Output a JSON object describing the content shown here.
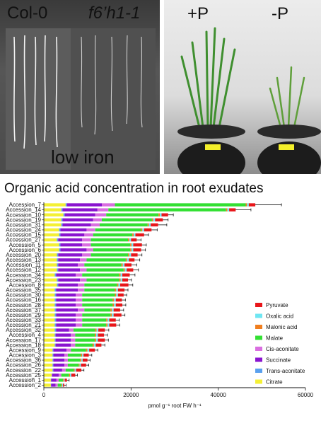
{
  "photos": {
    "left": {
      "label_left": "Col-0",
      "label_right": "f6’h1-1",
      "caption": "low iron"
    },
    "right": {
      "label_left": "+P",
      "label_right": "-P"
    }
  },
  "chart_data": {
    "type": "bar",
    "orientation": "horizontal",
    "stacked": true,
    "title": "Organic acid concentration in root exudates",
    "xlabel": "pmol g⁻¹ root FW h⁻¹",
    "ylabel": "",
    "xlim": [
      0,
      60000
    ],
    "xticks": [
      0,
      20000,
      40000,
      60000
    ],
    "grid": false,
    "legend_position": "right",
    "stack_order": [
      "Citrate",
      "Trans-aconitate",
      "Succinate",
      "Cis-aconitate",
      "Malate",
      "Malonic acid",
      "Oxalic acid",
      "Pyruvate"
    ],
    "legend_order": [
      "Pyruvate",
      "Oxalic acid",
      "Malonic acid",
      "Malate",
      "Cis-aconitate",
      "Succinate",
      "Trans-aconitate",
      "Citrate"
    ],
    "colors": {
      "Pyruvate": "#e8161a",
      "Oxalic acid": "#6fe6f2",
      "Malonic acid": "#f07e1e",
      "Malate": "#33e033",
      "Cis-aconitate": "#d96ee0",
      "Succinate": "#8a14cf",
      "Trans-aconitate": "#5aa0ee",
      "Citrate": "#f4f035"
    },
    "categories": [
      "Accession_7",
      "Accession_14",
      "Accession_10",
      "Accession_19",
      "Accession_31",
      "Accession_24",
      "Accession_15",
      "Accession_27",
      "Accession_5",
      "Accession_6",
      "Accession_20",
      "Accession_13",
      "Accession_11",
      "Accession_12",
      "Accession_34",
      "Accession_23",
      "Accession_8",
      "Accession_35",
      "Accession_30",
      "Accession_16",
      "Accession_28",
      "Accession_37",
      "Accession_29",
      "Accession_33",
      "Accession_21",
      "Accession_32",
      "Accession_4",
      "Accession_17",
      "Accession_18",
      "Accession_9",
      "Accession_3",
      "Accession_36",
      "Accession_26",
      "Accession_22",
      "Accession_25",
      "Accession_1",
      "Accession_2"
    ],
    "series": [
      {
        "name": "Citrate",
        "values": [
          5000,
          4000,
          4500,
          4000,
          4000,
          3500,
          3500,
          3000,
          3500,
          3500,
          3000,
          3000,
          3000,
          3000,
          2500,
          3000,
          3000,
          2500,
          2500,
          2500,
          2500,
          2500,
          2500,
          2500,
          2500,
          2500,
          2500,
          2500,
          2500,
          2000,
          2000,
          2000,
          2000,
          2000,
          1800,
          1600,
          1600
        ]
      },
      {
        "name": "Trans-aconitate",
        "values": [
          300,
          300,
          300,
          300,
          300,
          300,
          300,
          300,
          300,
          300,
          300,
          300,
          300,
          300,
          300,
          300,
          300,
          300,
          300,
          300,
          300,
          300,
          300,
          300,
          300,
          300,
          200,
          200,
          200,
          200,
          200,
          200,
          200,
          200,
          100,
          100,
          100
        ]
      },
      {
        "name": "Succinate",
        "values": [
          8000,
          8000,
          7000,
          7000,
          6500,
          6000,
          5500,
          5500,
          5000,
          6000,
          5500,
          5000,
          4500,
          5000,
          4500,
          5000,
          4500,
          5000,
          4500,
          4500,
          4500,
          5000,
          4500,
          4500,
          4500,
          3000,
          3500,
          3500,
          3500,
          3000,
          2500,
          2500,
          2500,
          2000,
          1500,
          1200,
          1000
        ]
      },
      {
        "name": "Cis-aconitate",
        "values": [
          3000,
          2500,
          2500,
          2000,
          2000,
          2000,
          2000,
          2000,
          2000,
          1500,
          2000,
          1500,
          1500,
          1500,
          1500,
          1500,
          1500,
          1500,
          1500,
          1500,
          1500,
          1500,
          1500,
          1500,
          1500,
          1000,
          1000,
          1000,
          1000,
          1000,
          800,
          800,
          800,
          800,
          600,
          500,
          500
        ]
      },
      {
        "name": "Malate",
        "values": [
          30000,
          27000,
          12000,
          11500,
          11000,
          10500,
          9000,
          8500,
          9000,
          8500,
          8500,
          9000,
          8500,
          8500,
          8500,
          7500,
          7500,
          7000,
          7500,
          7000,
          7000,
          6000,
          6500,
          5500,
          5500,
          5000,
          4500,
          4500,
          4000,
          3500,
          3000,
          2800,
          2500,
          1900,
          1800,
          1000,
          800
        ]
      },
      {
        "name": "Malonic acid",
        "values": [
          300,
          300,
          300,
          300,
          300,
          300,
          300,
          300,
          300,
          300,
          300,
          300,
          300,
          300,
          300,
          300,
          300,
          300,
          300,
          300,
          300,
          300,
          300,
          300,
          300,
          300,
          300,
          300,
          300,
          300,
          300,
          300,
          200,
          200,
          200,
          200,
          200
        ]
      },
      {
        "name": "Oxalic acid",
        "values": [
          400,
          400,
          400,
          400,
          400,
          400,
          400,
          400,
          400,
          400,
          400,
          400,
          400,
          400,
          400,
          400,
          400,
          400,
          400,
          400,
          400,
          400,
          400,
          400,
          400,
          400,
          400,
          400,
          400,
          400,
          300,
          300,
          300,
          300,
          300,
          200,
          200
        ]
      },
      {
        "name": "Pyruvate",
        "values": [
          1500,
          1500,
          1500,
          1800,
          1700,
          1700,
          2000,
          1300,
          2000,
          1800,
          1500,
          1300,
          1600,
          1500,
          1700,
          1300,
          1900,
          1500,
          1300,
          1400,
          1500,
          1500,
          1800,
          1500,
          1600,
          1500,
          1400,
          1600,
          1300,
          1300,
          1200,
          1100,
          1200,
          1200,
          900,
          500,
          300
        ]
      }
    ],
    "errors": [
      6000,
      3500,
      1200,
      1200,
      2000,
      1300,
      1000,
      1000,
      1000,
      1000,
      1000,
      1200,
      1200,
      1200,
      1200,
      800,
      1000,
      800,
      700,
      800,
      800,
      800,
      800,
      800,
      800,
      900,
      800,
      800,
      800,
      700,
      700,
      600,
      600,
      600,
      500,
      500,
      400
    ]
  }
}
